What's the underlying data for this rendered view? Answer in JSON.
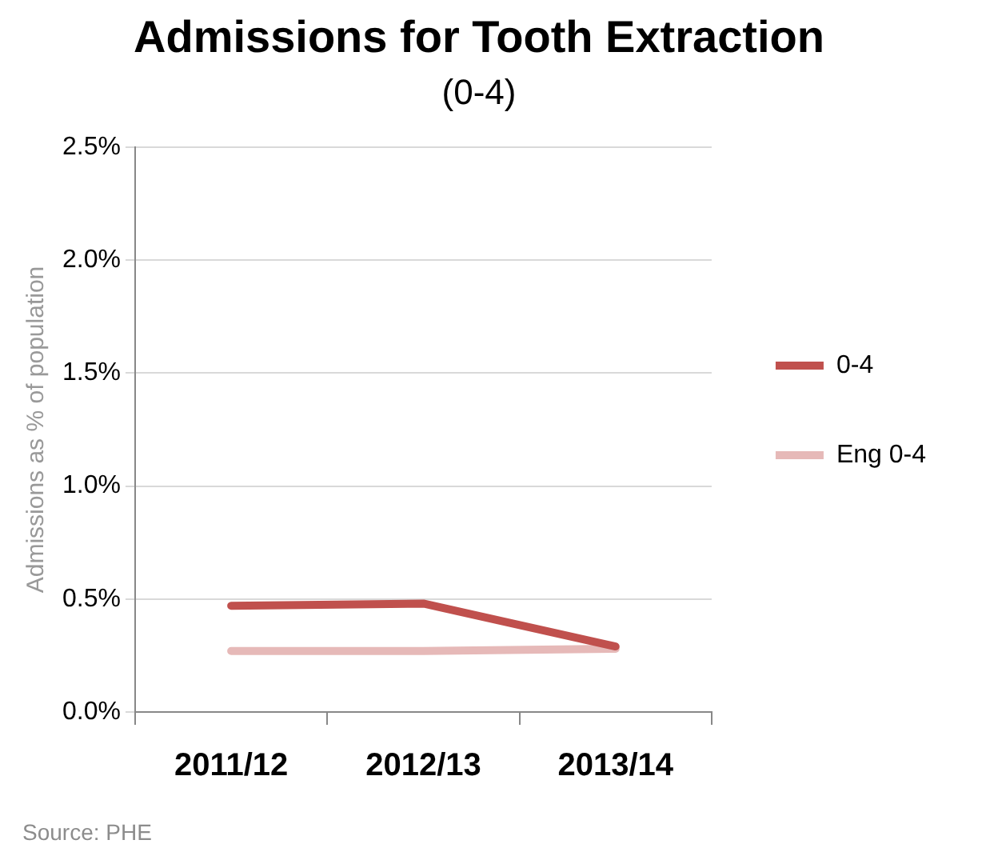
{
  "chart_data": {
    "type": "line",
    "title": "Admissions for Tooth Extraction",
    "subtitle": "(0-4)",
    "ylabel": "Admissions as % of population",
    "categories": [
      "2011/12",
      "2012/13",
      "2013/14"
    ],
    "series": [
      {
        "name": "0-4",
        "color": "#c0504d",
        "values": [
          0.47,
          0.48,
          0.29
        ]
      },
      {
        "name": "Eng 0-4",
        "color": "#e6b9b8",
        "values": [
          0.27,
          0.27,
          0.28
        ]
      }
    ],
    "ylim": [
      0,
      2.5
    ],
    "yticks": [
      {
        "value": 0,
        "label": "0.0%"
      },
      {
        "value": 0.5,
        "label": "0.5%"
      },
      {
        "value": 1,
        "label": "1.0%"
      },
      {
        "value": 1.5,
        "label": "1.5%"
      },
      {
        "value": 2,
        "label": "2.0%"
      },
      {
        "value": 2.5,
        "label": "2.5%"
      }
    ],
    "grid": "y",
    "legend": "right",
    "marker": "none",
    "line_style": "solid",
    "annotations": [
      "Source: PHE"
    ]
  }
}
